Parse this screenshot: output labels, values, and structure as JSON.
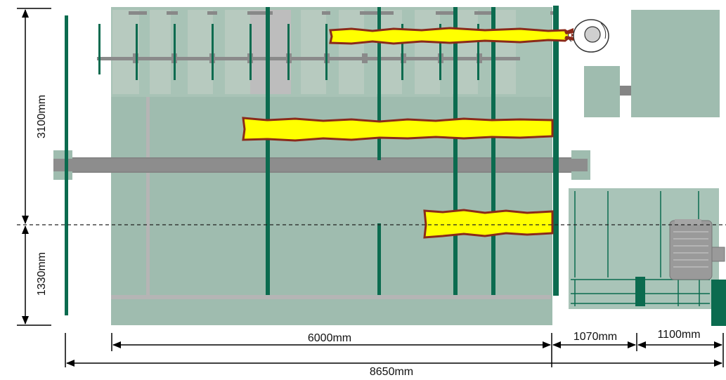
{
  "dimensions": {
    "height_upper": "3100mm",
    "height_lower": "1330mm",
    "width_main": "6000mm",
    "width_middle": "1070mm",
    "width_drive": "1100mm",
    "width_total": "8650mm"
  },
  "colors": {
    "machine_body": "#9fbcaf",
    "machine_panel": "#a6c2b5",
    "green_bar": "#0b6b4f",
    "gray_shaft": "#858585",
    "light_gray": "#b9b9b9",
    "flame_yellow": "#ffff00",
    "flame_edge": "#8b2a1a",
    "drive_bg": "#a9c4b8",
    "motor_gray": "#9a9a9a"
  },
  "icons": {
    "operator": "operator-topview-icon",
    "motor": "electric-motor-icon"
  }
}
